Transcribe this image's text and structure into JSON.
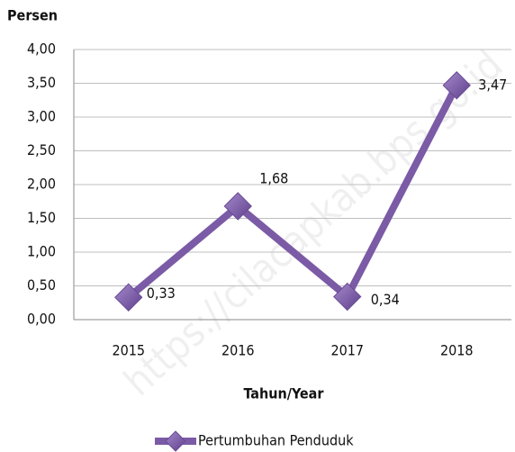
{
  "chart_data": {
    "type": "line",
    "y_label": "Persen",
    "x_label": "Tahun/Year",
    "watermark": "https://cilacapkab.bps.go.id",
    "categories": [
      "2015",
      "2016",
      "2017",
      "2018"
    ],
    "series": [
      {
        "name": "Pertumbuhan Penduduk",
        "color": "#7b5aa6",
        "values": [
          0.33,
          1.68,
          0.34,
          3.47
        ],
        "value_labels": [
          "0,33",
          "1,68",
          "0,34",
          "3,47"
        ]
      }
    ],
    "ylim": [
      0,
      4
    ],
    "yticks": [
      {
        "value": 0,
        "label": "0,00"
      },
      {
        "value": 0.5,
        "label": "0,50"
      },
      {
        "value": 1,
        "label": "1,00"
      },
      {
        "value": 1.5,
        "label": "1,50"
      },
      {
        "value": 2,
        "label": "2,00"
      },
      {
        "value": 2.5,
        "label": "2,50"
      },
      {
        "value": 3,
        "label": "3,00"
      },
      {
        "value": 3.5,
        "label": "3,50"
      },
      {
        "value": 4,
        "label": "4,00"
      }
    ],
    "grid": true,
    "legend": "bottom"
  }
}
